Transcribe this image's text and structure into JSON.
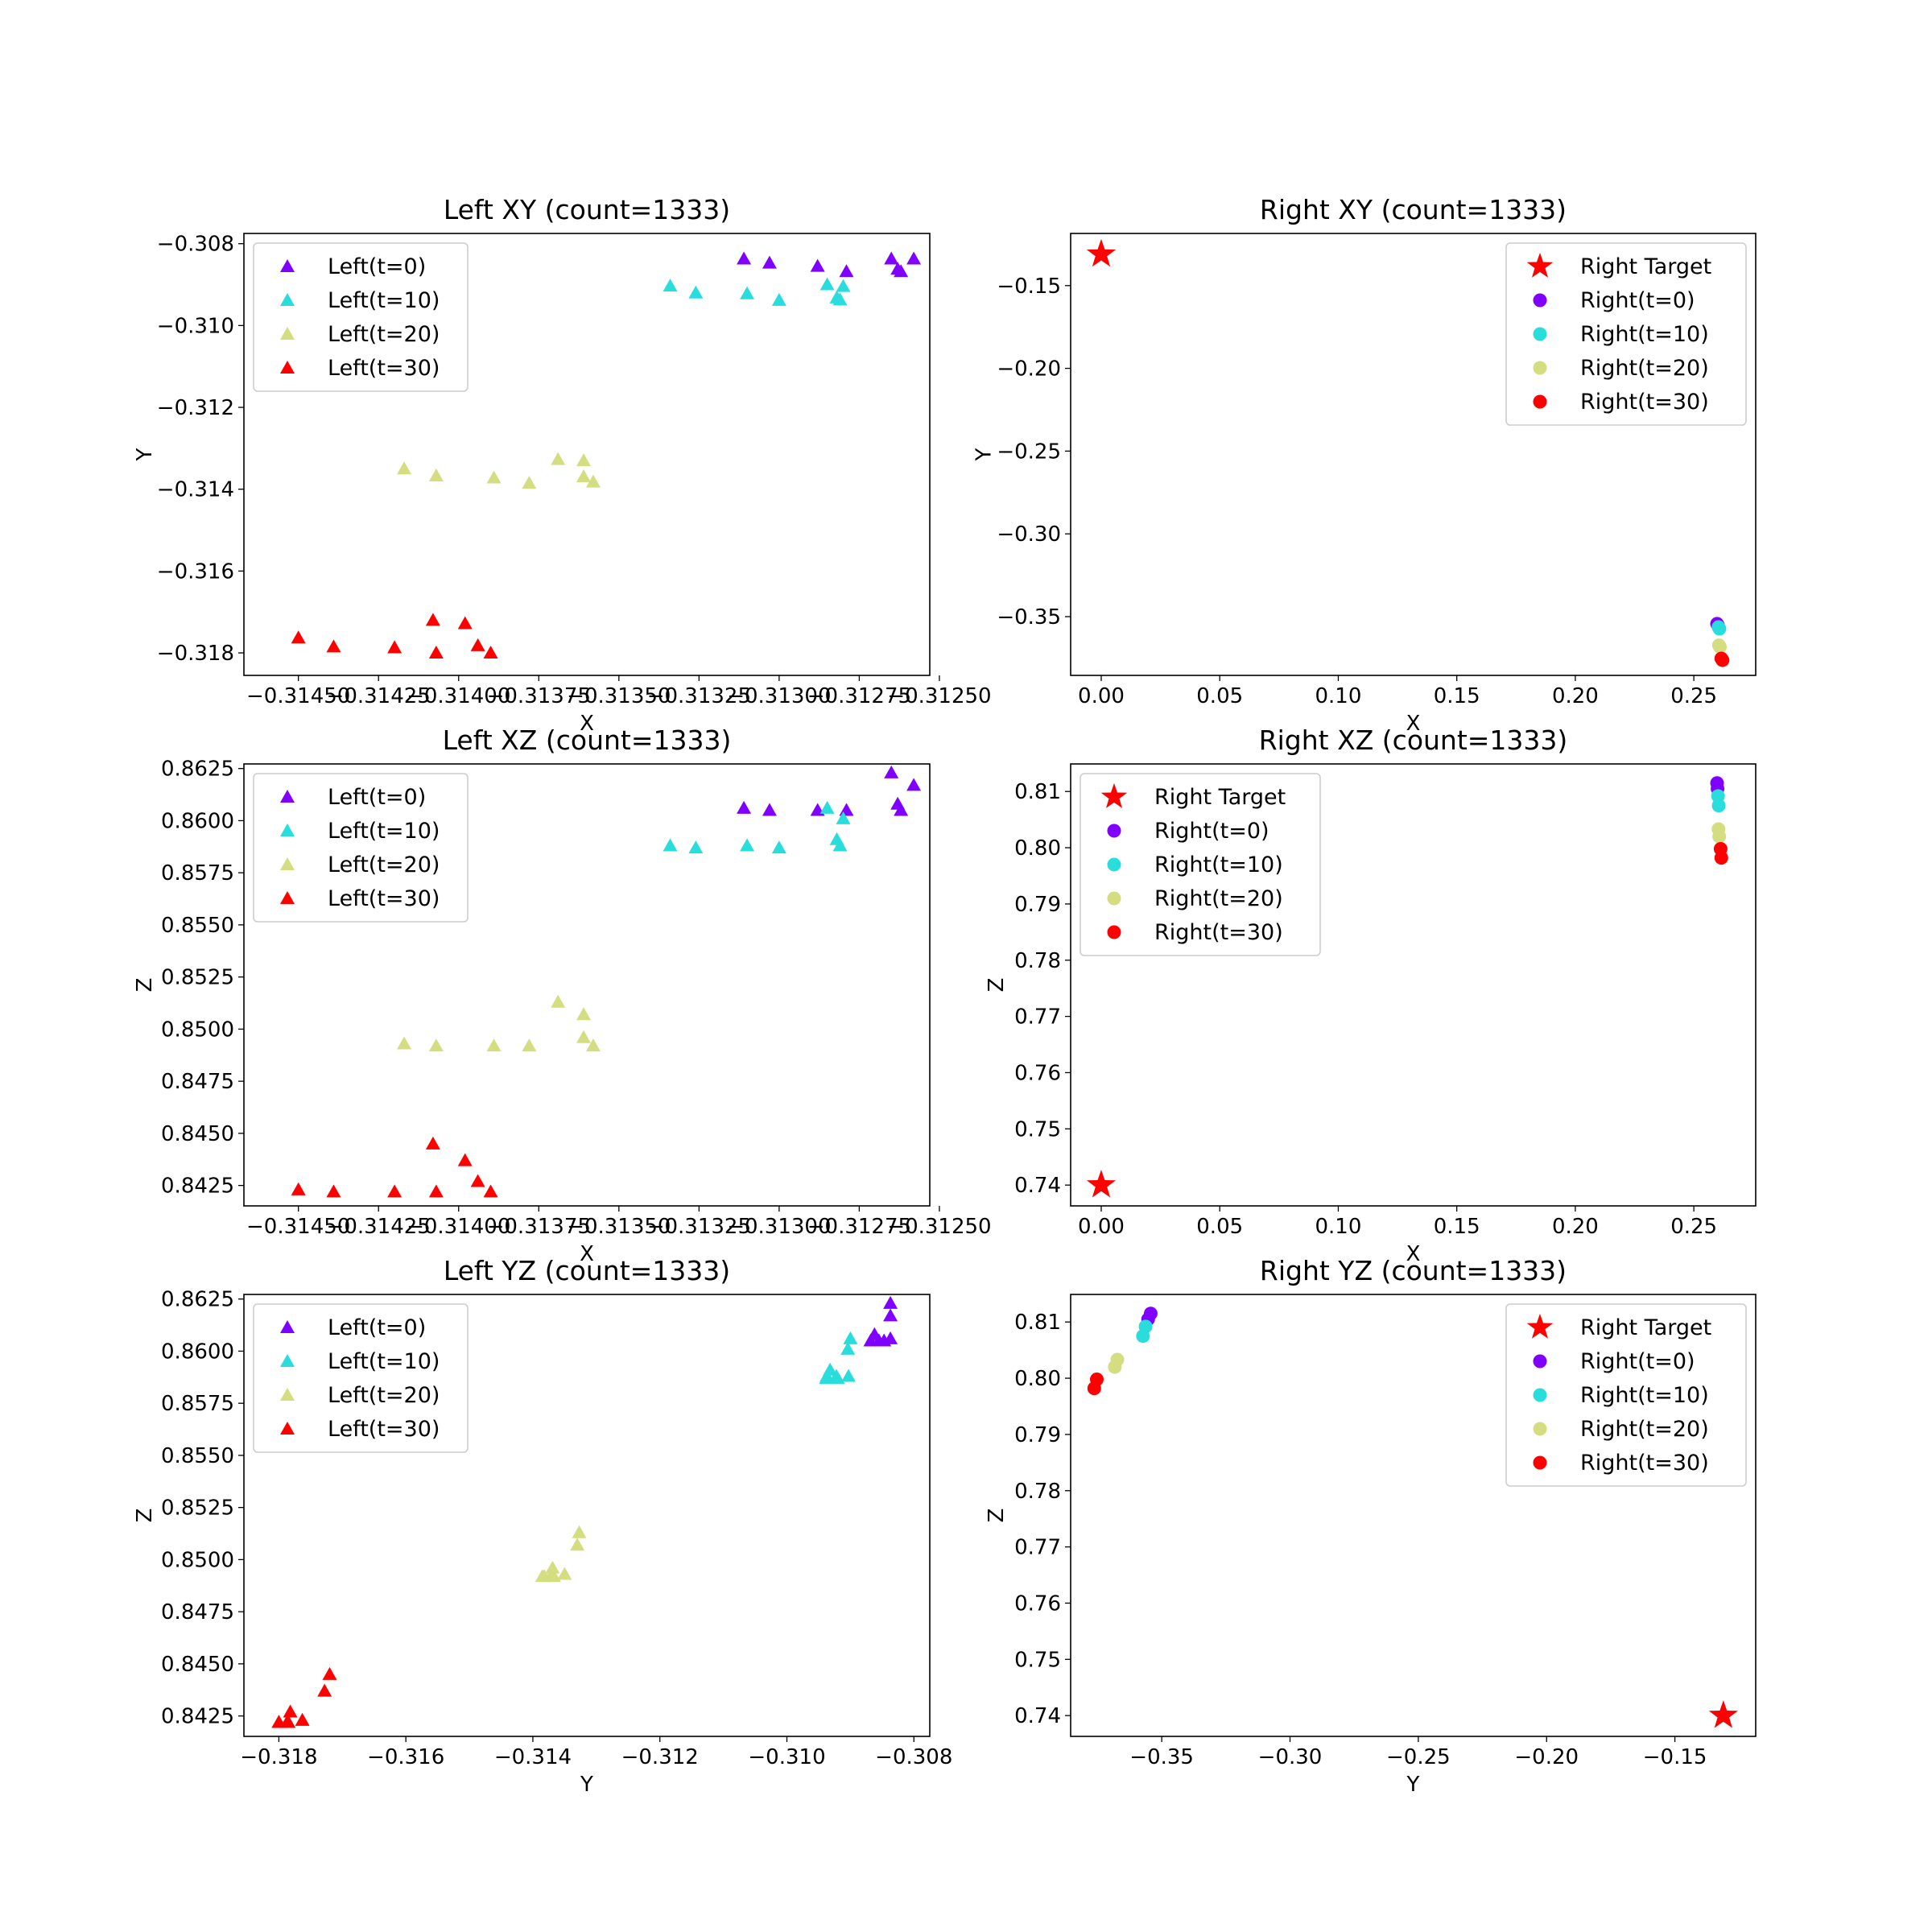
{
  "colors": {
    "t0": "#8000ff",
    "t10": "#2adddd",
    "t20": "#d4dd80",
    "t30": "#ff0000",
    "target": "#ff0000"
  },
  "chart_data": [
    {
      "id": "left-xy",
      "type": "scatter",
      "title": "Left XY (count=1333)",
      "xlabel": "X",
      "ylabel": "Y",
      "xlim": [
        -0.31467,
        -0.31253
      ],
      "ylim": [
        -0.31855,
        -0.30775
      ],
      "xticks": [
        -0.3145,
        -0.31425,
        -0.314,
        -0.31375,
        -0.3135,
        -0.31325,
        -0.313,
        -0.31275,
        -0.3125
      ],
      "xtick_labels": [
        "−0.31450",
        "−0.31425",
        "−0.31400",
        "−0.31375",
        "−0.31350",
        "−0.31325",
        "−0.31300",
        "−0.31275",
        "−0.31250"
      ],
      "yticks": [
        -0.318,
        -0.316,
        -0.314,
        -0.312,
        -0.31,
        -0.308
      ],
      "ytick_labels": [
        "−0.318",
        "−0.316",
        "−0.314",
        "−0.312",
        "−0.310",
        "−0.308"
      ],
      "legend_position": "upper-left",
      "series": [
        {
          "name": "Left(t=0)",
          "marker": "triangle",
          "color_key": "t0",
          "x": [
            -0.31311,
            -0.31303,
            -0.31288,
            -0.31279,
            -0.31265,
            -0.31263,
            -0.31262,
            -0.31258
          ],
          "y": [
            -0.30837,
            -0.30847,
            -0.30855,
            -0.30868,
            -0.30837,
            -0.30862,
            -0.30868,
            -0.30837
          ]
        },
        {
          "name": "Left(t=10)",
          "marker": "triangle",
          "color_key": "t10",
          "x": [
            -0.31334,
            -0.31326,
            -0.3131,
            -0.313,
            -0.31285,
            -0.31282,
            -0.31281,
            -0.3128
          ],
          "y": [
            -0.30903,
            -0.3092,
            -0.30922,
            -0.30938,
            -0.309,
            -0.30932,
            -0.30937,
            -0.30904
          ]
        },
        {
          "name": "Left(t=20)",
          "marker": "triangle",
          "color_key": "t20",
          "x": [
            -0.31417,
            -0.31407,
            -0.31389,
            -0.31378,
            -0.31369,
            -0.31361,
            -0.31361,
            -0.31358
          ],
          "y": [
            -0.3135,
            -0.31367,
            -0.31372,
            -0.31385,
            -0.31327,
            -0.3133,
            -0.31369,
            -0.31382
          ]
        },
        {
          "name": "Left(t=30)",
          "marker": "triangle",
          "color_key": "t30",
          "x": [
            -0.3145,
            -0.31439,
            -0.3142,
            -0.31408,
            -0.31407,
            -0.31398,
            -0.31394,
            -0.3139
          ],
          "y": [
            -0.31763,
            -0.31785,
            -0.31787,
            -0.3172,
            -0.318,
            -0.31728,
            -0.31782,
            -0.318
          ]
        }
      ]
    },
    {
      "id": "right-xy",
      "type": "scatter",
      "title": "Right XY (count=1333)",
      "xlabel": "X",
      "ylabel": "Y",
      "xlim": [
        -0.0129,
        0.2761
      ],
      "ylim": [
        -0.3855,
        -0.1185
      ],
      "xticks": [
        0.0,
        0.05,
        0.1,
        0.15,
        0.2,
        0.25
      ],
      "xtick_labels": [
        "0.00",
        "0.05",
        "0.10",
        "0.15",
        "0.20",
        "0.25"
      ],
      "yticks": [
        -0.35,
        -0.3,
        -0.25,
        -0.2,
        -0.15
      ],
      "ytick_labels": [
        "−0.35",
        "−0.30",
        "−0.25",
        "−0.20",
        "−0.15"
      ],
      "legend_position": "upper-right",
      "series": [
        {
          "name": "Right Target",
          "marker": "star",
          "color_key": "target",
          "x": [
            0.0
          ],
          "y": [
            -0.1311
          ]
        },
        {
          "name": "Right(t=0)",
          "marker": "circle",
          "color_key": "t0",
          "x": [
            0.2598,
            0.2602
          ],
          "y": [
            -0.3543,
            -0.3553
          ]
        },
        {
          "name": "Right(t=10)",
          "marker": "circle",
          "color_key": "t10",
          "x": [
            0.2604,
            0.2608
          ],
          "y": [
            -0.3563,
            -0.3573
          ]
        },
        {
          "name": "Right(t=20)",
          "marker": "circle",
          "color_key": "t20",
          "x": [
            0.2606,
            0.261
          ],
          "y": [
            -0.3673,
            -0.3683
          ]
        },
        {
          "name": "Right(t=30)",
          "marker": "circle",
          "color_key": "t30",
          "x": [
            0.2616,
            0.2621
          ],
          "y": [
            -0.3753,
            -0.3763
          ]
        }
      ]
    },
    {
      "id": "left-xz",
      "type": "scatter",
      "title": "Left XZ (count=1333)",
      "xlabel": "X",
      "ylabel": "Z",
      "xlim": [
        -0.31467,
        -0.31253
      ],
      "ylim": [
        0.84152,
        0.86272
      ],
      "xticks": [
        -0.3145,
        -0.31425,
        -0.314,
        -0.31375,
        -0.3135,
        -0.31325,
        -0.313,
        -0.31275,
        -0.3125
      ],
      "xtick_labels": [
        "−0.31450",
        "−0.31425",
        "−0.31400",
        "−0.31375",
        "−0.31350",
        "−0.31325",
        "−0.31300",
        "−0.31275",
        "−0.31250"
      ],
      "yticks": [
        0.8425,
        0.845,
        0.8475,
        0.85,
        0.8525,
        0.855,
        0.8575,
        0.86,
        0.8625
      ],
      "ytick_labels": [
        "0.8425",
        "0.8450",
        "0.8475",
        "0.8500",
        "0.8525",
        "0.8550",
        "0.8575",
        "0.8600",
        "0.8625"
      ],
      "legend_position": "upper-left",
      "series": [
        {
          "name": "Left(t=0)",
          "marker": "triangle",
          "color_key": "t0",
          "x": [
            -0.31311,
            -0.31303,
            -0.31288,
            -0.31279,
            -0.31265,
            -0.31263,
            -0.31262,
            -0.31258
          ],
          "y": [
            0.8606,
            0.8605,
            0.8605,
            0.8605,
            0.8623,
            0.8608,
            0.8605,
            0.8617
          ]
        },
        {
          "name": "Left(t=10)",
          "marker": "triangle",
          "color_key": "t10",
          "x": [
            -0.31334,
            -0.31326,
            -0.3131,
            -0.313,
            -0.31285,
            -0.31282,
            -0.31281,
            -0.3128
          ],
          "y": [
            0.8588,
            0.8587,
            0.8588,
            0.8587,
            0.8606,
            0.8591,
            0.8588,
            0.8601
          ]
        },
        {
          "name": "Left(t=20)",
          "marker": "triangle",
          "color_key": "t20",
          "x": [
            -0.31417,
            -0.31407,
            -0.31389,
            -0.31378,
            -0.31369,
            -0.31361,
            -0.31361,
            -0.31358
          ],
          "y": [
            0.8493,
            0.8492,
            0.8492,
            0.8492,
            0.8513,
            0.8507,
            0.8496,
            0.8492
          ]
        },
        {
          "name": "Left(t=30)",
          "marker": "triangle",
          "color_key": "t30",
          "x": [
            -0.3145,
            -0.31439,
            -0.3142,
            -0.31408,
            -0.31407,
            -0.31398,
            -0.31394,
            -0.3139
          ],
          "y": [
            0.8423,
            0.8422,
            0.8422,
            0.8445,
            0.8422,
            0.8437,
            0.8427,
            0.8422
          ]
        }
      ]
    },
    {
      "id": "right-xz",
      "type": "scatter",
      "title": "Right XZ (count=1333)",
      "xlabel": "X",
      "ylabel": "Z",
      "xlim": [
        -0.0129,
        0.2761
      ],
      "ylim": [
        0.7363,
        0.8149
      ],
      "xticks": [
        0.0,
        0.05,
        0.1,
        0.15,
        0.2,
        0.25
      ],
      "xtick_labels": [
        "0.00",
        "0.05",
        "0.10",
        "0.15",
        "0.20",
        "0.25"
      ],
      "yticks": [
        0.74,
        0.75,
        0.76,
        0.77,
        0.78,
        0.79,
        0.8,
        0.81
      ],
      "ytick_labels": [
        "0.74",
        "0.75",
        "0.76",
        "0.77",
        "0.78",
        "0.79",
        "0.80",
        "0.81"
      ],
      "legend_position": "upper-left",
      "series": [
        {
          "name": "Right Target",
          "marker": "star",
          "color_key": "target",
          "x": [
            0.0
          ],
          "y": [
            0.74
          ]
        },
        {
          "name": "Right(t=0)",
          "marker": "circle",
          "color_key": "t0",
          "x": [
            0.2598,
            0.26
          ],
          "y": [
            0.8115,
            0.8105
          ]
        },
        {
          "name": "Right(t=10)",
          "marker": "circle",
          "color_key": "t10",
          "x": [
            0.2602,
            0.2605
          ],
          "y": [
            0.8092,
            0.8075
          ]
        },
        {
          "name": "Right(t=20)",
          "marker": "circle",
          "color_key": "t20",
          "x": [
            0.2604,
            0.2607
          ],
          "y": [
            0.8033,
            0.802
          ]
        },
        {
          "name": "Right(t=30)",
          "marker": "circle",
          "color_key": "t30",
          "x": [
            0.2613,
            0.2616
          ],
          "y": [
            0.7998,
            0.7982
          ]
        }
      ]
    },
    {
      "id": "left-yz",
      "type": "scatter",
      "title": "Left YZ (count=1333)",
      "xlabel": "Y",
      "ylabel": "Z",
      "xlim": [
        -0.31855,
        -0.30775
      ],
      "ylim": [
        0.84152,
        0.86272
      ],
      "xticks": [
        -0.318,
        -0.316,
        -0.314,
        -0.312,
        -0.31,
        -0.308
      ],
      "xtick_labels": [
        "−0.318",
        "−0.316",
        "−0.314",
        "−0.312",
        "−0.310",
        "−0.308"
      ],
      "yticks": [
        0.8425,
        0.845,
        0.8475,
        0.85,
        0.8525,
        0.855,
        0.8575,
        0.86,
        0.8625
      ],
      "ytick_labels": [
        "0.8425",
        "0.8450",
        "0.8475",
        "0.8500",
        "0.8525",
        "0.8550",
        "0.8575",
        "0.8600",
        "0.8625"
      ],
      "legend_position": "upper-left",
      "series": [
        {
          "name": "Left(t=0)",
          "marker": "triangle",
          "color_key": "t0",
          "x": [
            -0.30837,
            -0.30847,
            -0.30855,
            -0.30868,
            -0.30837,
            -0.30862,
            -0.30868,
            -0.30837
          ],
          "y": [
            0.8606,
            0.8605,
            0.8605,
            0.8605,
            0.8623,
            0.8608,
            0.8605,
            0.8617
          ]
        },
        {
          "name": "Left(t=10)",
          "marker": "triangle",
          "color_key": "t10",
          "x": [
            -0.30903,
            -0.3092,
            -0.30922,
            -0.30938,
            -0.309,
            -0.30932,
            -0.30937,
            -0.30904
          ],
          "y": [
            0.8588,
            0.8587,
            0.8588,
            0.8587,
            0.8606,
            0.8591,
            0.8588,
            0.8601
          ]
        },
        {
          "name": "Left(t=20)",
          "marker": "triangle",
          "color_key": "t20",
          "x": [
            -0.3135,
            -0.31367,
            -0.31372,
            -0.31385,
            -0.31327,
            -0.3133,
            -0.31369,
            -0.31382
          ],
          "y": [
            0.8493,
            0.8492,
            0.8492,
            0.8492,
            0.8513,
            0.8507,
            0.8496,
            0.8492
          ]
        },
        {
          "name": "Left(t=30)",
          "marker": "triangle",
          "color_key": "t30",
          "x": [
            -0.31763,
            -0.31785,
            -0.31787,
            -0.3172,
            -0.318,
            -0.31728,
            -0.31782,
            -0.318
          ],
          "y": [
            0.8423,
            0.8422,
            0.8422,
            0.8445,
            0.8422,
            0.8437,
            0.8427,
            0.8422
          ]
        }
      ]
    },
    {
      "id": "right-yz",
      "type": "scatter",
      "title": "Right YZ (count=1333)",
      "xlabel": "Y",
      "ylabel": "Z",
      "xlim": [
        -0.3855,
        -0.1185
      ],
      "ylim": [
        0.7363,
        0.8149
      ],
      "xticks": [
        -0.35,
        -0.3,
        -0.25,
        -0.2,
        -0.15
      ],
      "xtick_labels": [
        "−0.35",
        "−0.30",
        "−0.25",
        "−0.20",
        "−0.15"
      ],
      "yticks": [
        0.74,
        0.75,
        0.76,
        0.77,
        0.78,
        0.79,
        0.8,
        0.81
      ],
      "ytick_labels": [
        "0.74",
        "0.75",
        "0.76",
        "0.77",
        "0.78",
        "0.79",
        "0.80",
        "0.81"
      ],
      "legend_position": "upper-right",
      "series": [
        {
          "name": "Right Target",
          "marker": "star",
          "color_key": "target",
          "x": [
            -0.1311
          ],
          "y": [
            0.74
          ]
        },
        {
          "name": "Right(t=0)",
          "marker": "circle",
          "color_key": "t0",
          "x": [
            -0.3543,
            -0.3553
          ],
          "y": [
            0.8115,
            0.8105
          ]
        },
        {
          "name": "Right(t=10)",
          "marker": "circle",
          "color_key": "t10",
          "x": [
            -0.3563,
            -0.3573
          ],
          "y": [
            0.8092,
            0.8075
          ]
        },
        {
          "name": "Right(t=20)",
          "marker": "circle",
          "color_key": "t20",
          "x": [
            -0.3673,
            -0.3683
          ],
          "y": [
            0.8033,
            0.802
          ]
        },
        {
          "name": "Right(t=30)",
          "marker": "circle",
          "color_key": "t30",
          "x": [
            -0.3753,
            -0.3763
          ],
          "y": [
            0.7998,
            0.7982
          ]
        }
      ]
    }
  ]
}
